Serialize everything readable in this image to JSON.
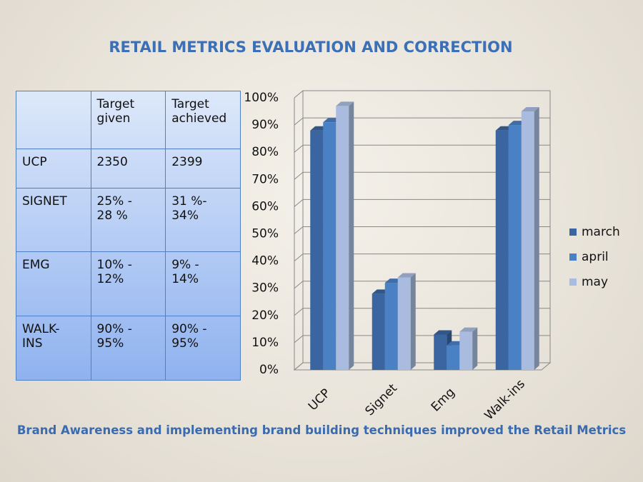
{
  "title": "RETAIL METRICS EVALUATION AND CORRECTION",
  "table": {
    "header": [
      "",
      "Target given",
      "Target achieved"
    ],
    "rows": [
      [
        "UCP",
        "2350",
        "2399"
      ],
      [
        "SIGNET",
        "25% - 28 %",
        "31 %- 34%"
      ],
      [
        "EMG",
        "10% - 12%",
        " 9% - 14%"
      ],
      [
        "WALK-INS",
        "90% - 95%",
        "90% - 95%"
      ]
    ]
  },
  "chart_data": {
    "type": "bar",
    "categories": [
      "UCP",
      "Signet",
      "Emg",
      "Walk-ins"
    ],
    "series": [
      {
        "name": "march",
        "color": "#3a65a0",
        "values": [
          88,
          28,
          13,
          88
        ]
      },
      {
        "name": "april",
        "color": "#4a80c4",
        "values": [
          91,
          32,
          9,
          90
        ]
      },
      {
        "name": "may",
        "color": "#a9bcdf",
        "values": [
          97,
          34,
          14,
          95
        ]
      }
    ],
    "ylim": [
      0,
      100
    ],
    "yticks": [
      {
        "value": 0,
        "label": "0%"
      },
      {
        "value": 10,
        "label": "10%"
      },
      {
        "value": 20,
        "label": "20%"
      },
      {
        "value": 30,
        "label": "30%"
      },
      {
        "value": 40,
        "label": "40%"
      },
      {
        "value": 50,
        "label": "50%"
      },
      {
        "value": 60,
        "label": "60%"
      },
      {
        "value": 70,
        "label": "70%"
      },
      {
        "value": 80,
        "label": "80%"
      },
      {
        "value": 90,
        "label": "90%"
      },
      {
        "value": 100,
        "label": "100%"
      }
    ],
    "grid": true,
    "legend": "right"
  },
  "footer": "Brand Awareness and implementing brand building techniques improved the Retail Metrics"
}
